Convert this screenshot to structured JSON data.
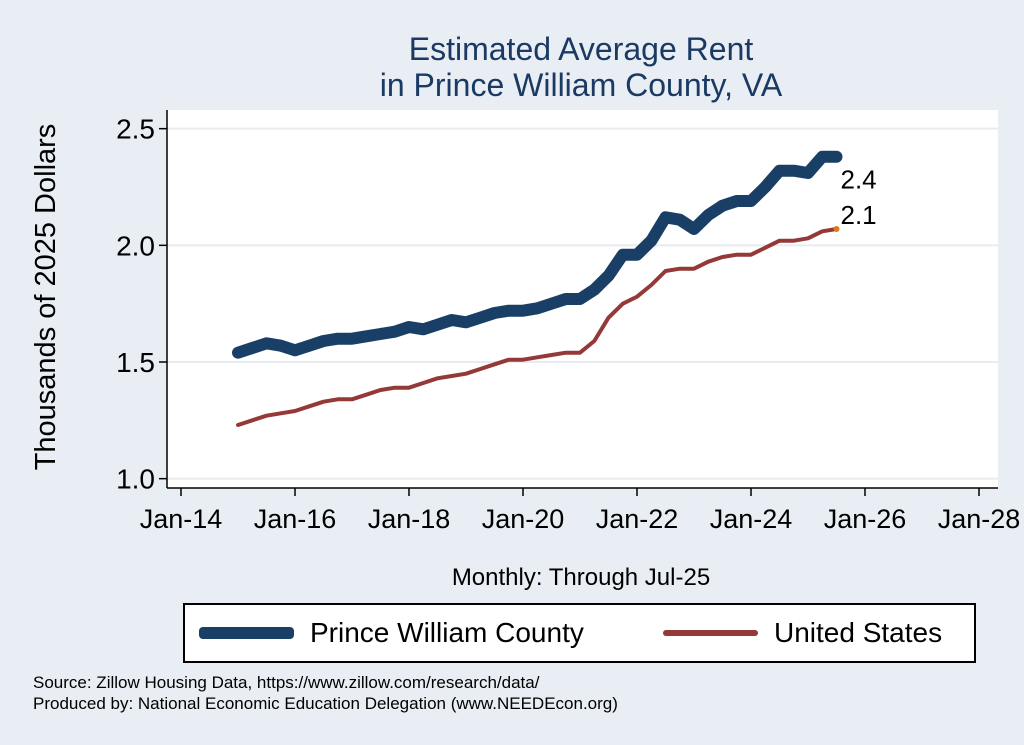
{
  "chart_data": {
    "type": "line",
    "title": [
      "Estimated Average Rent",
      "in Prince William County, VA"
    ],
    "ylabel": "Thousands of 2025 Dollars",
    "xlabel": "Monthly: Through Jul-25",
    "x_ticks": [
      "Jan-14",
      "Jan-16",
      "Jan-18",
      "Jan-20",
      "Jan-22",
      "Jan-24",
      "Jan-26",
      "Jan-28"
    ],
    "y_ticks": [
      "1.0",
      "1.5",
      "2.0",
      "2.5"
    ],
    "xlim": [
      "2014-01",
      "2028-01"
    ],
    "ylim": [
      0.96,
      2.58
    ],
    "grid": "horizontal",
    "legend_position": "bottom",
    "series": [
      {
        "name": "Prince William County",
        "color": "#1a3f66",
        "end_label": "2.4",
        "points": [
          [
            "2015-01",
            1.54
          ],
          [
            "2015-04",
            1.56
          ],
          [
            "2015-07",
            1.58
          ],
          [
            "2015-10",
            1.57
          ],
          [
            "2016-01",
            1.55
          ],
          [
            "2016-04",
            1.57
          ],
          [
            "2016-07",
            1.59
          ],
          [
            "2016-10",
            1.6
          ],
          [
            "2017-01",
            1.6
          ],
          [
            "2017-04",
            1.61
          ],
          [
            "2017-07",
            1.62
          ],
          [
            "2017-10",
            1.63
          ],
          [
            "2018-01",
            1.65
          ],
          [
            "2018-04",
            1.64
          ],
          [
            "2018-07",
            1.66
          ],
          [
            "2018-10",
            1.68
          ],
          [
            "2019-01",
            1.67
          ],
          [
            "2019-04",
            1.69
          ],
          [
            "2019-07",
            1.71
          ],
          [
            "2019-10",
            1.72
          ],
          [
            "2020-01",
            1.72
          ],
          [
            "2020-04",
            1.73
          ],
          [
            "2020-07",
            1.75
          ],
          [
            "2020-10",
            1.77
          ],
          [
            "2021-01",
            1.77
          ],
          [
            "2021-04",
            1.81
          ],
          [
            "2021-07",
            1.87
          ],
          [
            "2021-10",
            1.96
          ],
          [
            "2022-01",
            1.96
          ],
          [
            "2022-04",
            2.02
          ],
          [
            "2022-07",
            2.12
          ],
          [
            "2022-10",
            2.11
          ],
          [
            "2023-01",
            2.07
          ],
          [
            "2023-04",
            2.13
          ],
          [
            "2023-07",
            2.17
          ],
          [
            "2023-10",
            2.19
          ],
          [
            "2024-01",
            2.19
          ],
          [
            "2024-04",
            2.25
          ],
          [
            "2024-07",
            2.32
          ],
          [
            "2024-10",
            2.32
          ],
          [
            "2025-01",
            2.31
          ],
          [
            "2025-04",
            2.38
          ],
          [
            "2025-07",
            2.38
          ]
        ]
      },
      {
        "name": "United States",
        "color": "#943838",
        "end_label": "2.1",
        "points": [
          [
            "2015-01",
            1.23
          ],
          [
            "2015-04",
            1.25
          ],
          [
            "2015-07",
            1.27
          ],
          [
            "2015-10",
            1.28
          ],
          [
            "2016-01",
            1.29
          ],
          [
            "2016-04",
            1.31
          ],
          [
            "2016-07",
            1.33
          ],
          [
            "2016-10",
            1.34
          ],
          [
            "2017-01",
            1.34
          ],
          [
            "2017-04",
            1.36
          ],
          [
            "2017-07",
            1.38
          ],
          [
            "2017-10",
            1.39
          ],
          [
            "2018-01",
            1.39
          ],
          [
            "2018-04",
            1.41
          ],
          [
            "2018-07",
            1.43
          ],
          [
            "2018-10",
            1.44
          ],
          [
            "2019-01",
            1.45
          ],
          [
            "2019-04",
            1.47
          ],
          [
            "2019-07",
            1.49
          ],
          [
            "2019-10",
            1.51
          ],
          [
            "2020-01",
            1.51
          ],
          [
            "2020-04",
            1.52
          ],
          [
            "2020-07",
            1.53
          ],
          [
            "2020-10",
            1.54
          ],
          [
            "2021-01",
            1.54
          ],
          [
            "2021-04",
            1.59
          ],
          [
            "2021-07",
            1.69
          ],
          [
            "2021-10",
            1.75
          ],
          [
            "2022-01",
            1.78
          ],
          [
            "2022-04",
            1.83
          ],
          [
            "2022-07",
            1.89
          ],
          [
            "2022-10",
            1.9
          ],
          [
            "2023-01",
            1.9
          ],
          [
            "2023-04",
            1.93
          ],
          [
            "2023-07",
            1.95
          ],
          [
            "2023-10",
            1.96
          ],
          [
            "2024-01",
            1.96
          ],
          [
            "2024-04",
            1.99
          ],
          [
            "2024-07",
            2.02
          ],
          [
            "2024-10",
            2.02
          ],
          [
            "2025-01",
            2.03
          ],
          [
            "2025-04",
            2.06
          ],
          [
            "2025-07",
            2.07
          ]
        ]
      }
    ]
  },
  "source": {
    "line1": "Source: Zillow Housing Data, https://www.zillow.com/research/data/",
    "line2": "Produced by: National Economic Education Delegation (www.NEEDEcon.org)"
  }
}
